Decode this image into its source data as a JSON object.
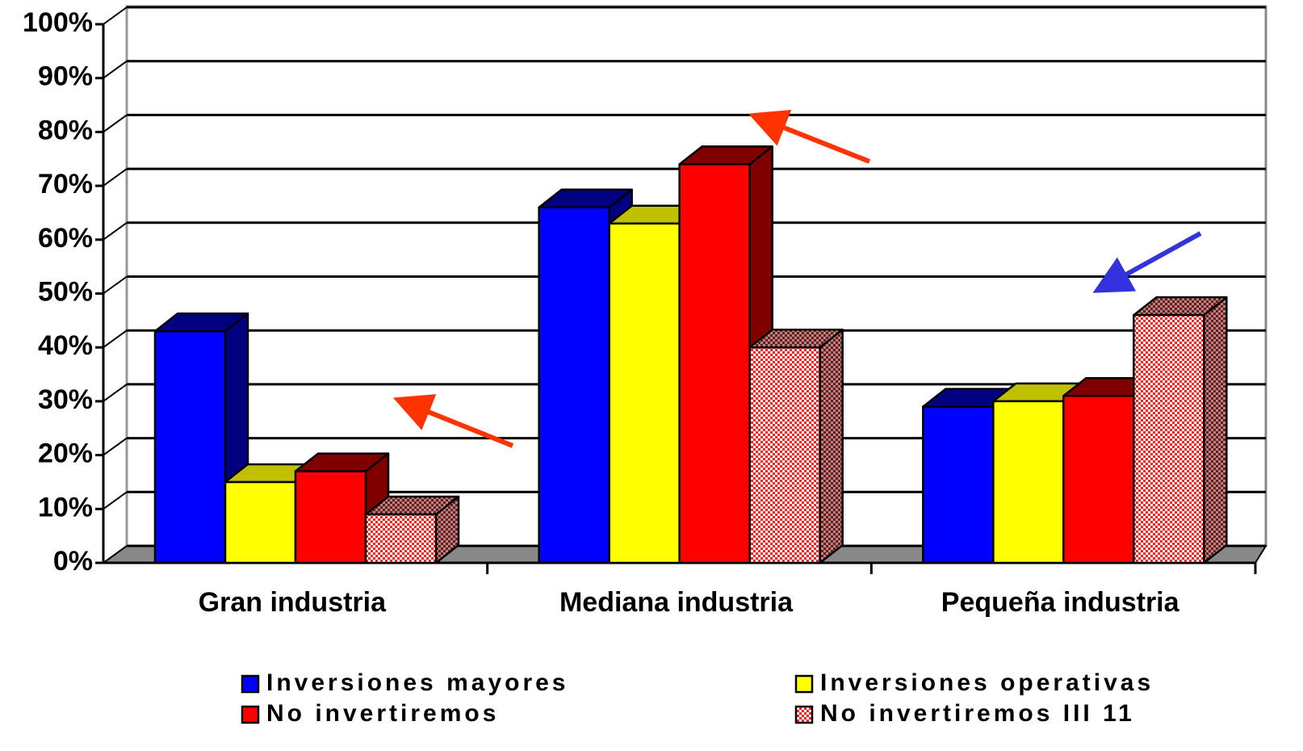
{
  "chart_data": {
    "type": "bar3d",
    "categories": [
      "Gran industria",
      "Mediana industria",
      "Pequeña industria"
    ],
    "series": [
      {
        "name": "Inversiones mayores",
        "color": "#0000ff",
        "side": "#000080",
        "values": [
          43,
          66,
          29
        ]
      },
      {
        "name": "Inversiones operativas",
        "color": "#ffff00",
        "side": "#c0c000",
        "values": [
          15,
          63,
          30
        ]
      },
      {
        "name": "No invertiremos",
        "color": "#ff0000",
        "side": "#800000",
        "values": [
          17,
          74,
          31
        ]
      },
      {
        "name": "No invertiremos III 11",
        "color": "#ff9999",
        "side": "#a05050",
        "hatch": true,
        "values": [
          9,
          40,
          46
        ]
      }
    ],
    "ylim": [
      0,
      100
    ],
    "yticks": [
      {
        "value": 0,
        "label": "0%"
      },
      {
        "value": 10,
        "label": "10%"
      },
      {
        "value": 20,
        "label": "20%"
      },
      {
        "value": 30,
        "label": "30%"
      },
      {
        "value": 40,
        "label": "40%"
      },
      {
        "value": 50,
        "label": "50%"
      },
      {
        "value": 60,
        "label": "60%"
      },
      {
        "value": 70,
        "label": "70%"
      },
      {
        "value": 80,
        "label": "80%"
      },
      {
        "value": 90,
        "label": "90%"
      },
      {
        "value": 100,
        "label": "100%"
      }
    ],
    "grid": true
  }
}
